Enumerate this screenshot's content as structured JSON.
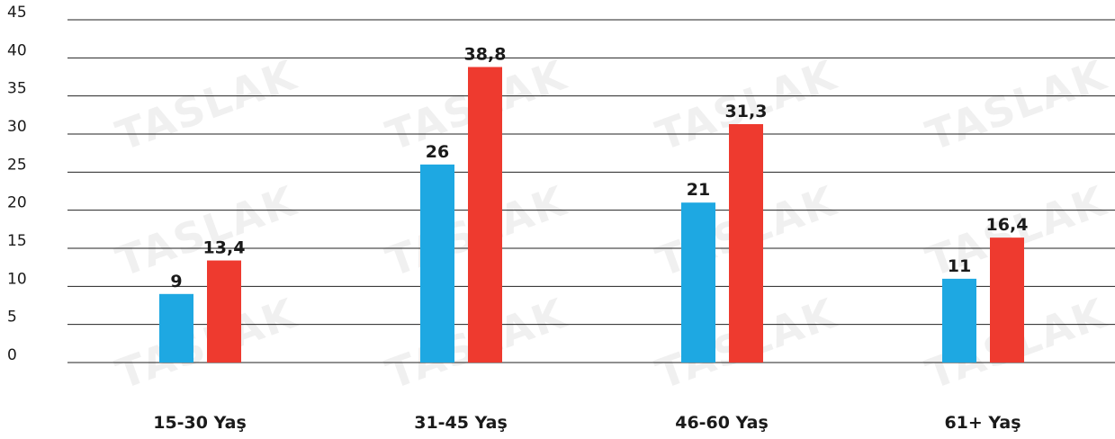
{
  "watermark": "TASLAK",
  "colors": {
    "series1": "#1ea8e2",
    "series2": "#ee3a2f",
    "grid": "#222222",
    "text": "#1a1a1a"
  },
  "chart_data": {
    "type": "bar",
    "categories": [
      "15-30 Yaş",
      "31-45 Yaş",
      "46-60 Yaş",
      "61+ Yaş"
    ],
    "series": [
      {
        "values": [
          9,
          26,
          21,
          11
        ],
        "labels": [
          "9",
          "26",
          "21",
          "11"
        ],
        "color": "#1ea8e2"
      },
      {
        "values": [
          13.4,
          38.8,
          31.3,
          16.4
        ],
        "labels": [
          "13,4",
          "38,8",
          "31,3",
          "16,4"
        ],
        "color": "#ee3a2f"
      }
    ],
    "yticks": [
      "0",
      "5",
      "10",
      "15",
      "20",
      "25",
      "30",
      "35",
      "40",
      "45"
    ],
    "ylim": [
      0,
      45
    ],
    "grid": true,
    "legend": "none"
  }
}
